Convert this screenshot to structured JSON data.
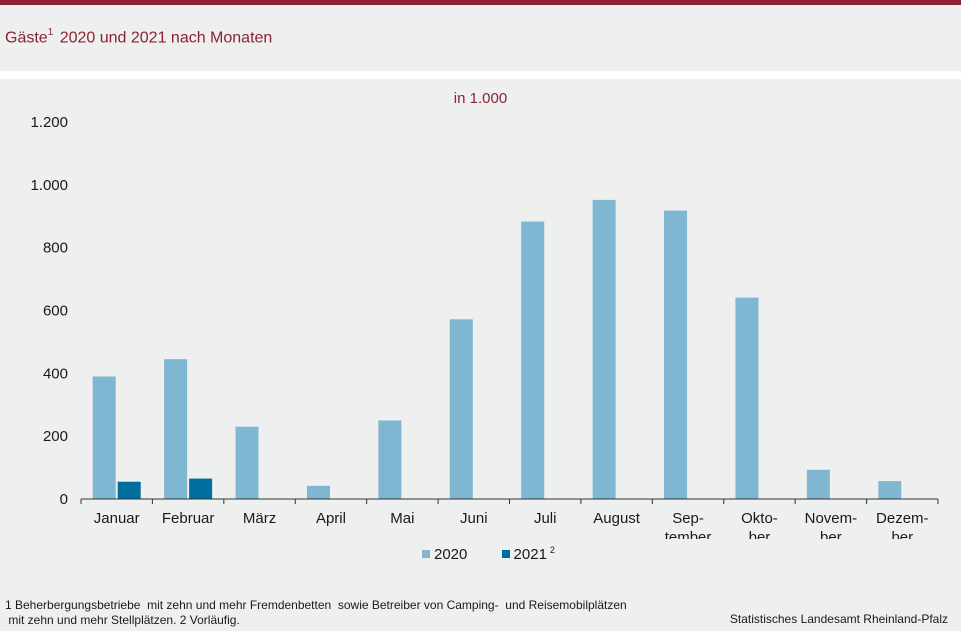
{
  "header": {
    "title": "Gäste",
    "title_sup": "1",
    "title_rest": " 2020 und 2021 nach Monaten"
  },
  "colors": {
    "accent": "#8b2233",
    "series_2020": "#7fb7d3",
    "series_2021": "#006e9f"
  },
  "chart_data": {
    "type": "bar",
    "unit_label": "in 1.000",
    "categories": [
      [
        "Januar"
      ],
      [
        "Februar"
      ],
      [
        "März"
      ],
      [
        "April"
      ],
      [
        "Mai"
      ],
      [
        "Juni"
      ],
      [
        "Juli"
      ],
      [
        "August"
      ],
      [
        "Sep-",
        "tember"
      ],
      [
        "Okto-",
        "ber"
      ],
      [
        "Novem-",
        "ber"
      ],
      [
        "Dezem-",
        "ber"
      ]
    ],
    "series": [
      {
        "name": "2020",
        "name_sup": "",
        "values": [
          390,
          445,
          230,
          42,
          250,
          572,
          883,
          952,
          918,
          641,
          93,
          57
        ]
      },
      {
        "name": "2021",
        "name_sup": "2",
        "values": [
          55,
          65,
          null,
          null,
          null,
          null,
          null,
          null,
          null,
          null,
          null,
          null
        ]
      }
    ],
    "ylim": [
      0,
      1200
    ],
    "yticks": [
      0,
      200,
      400,
      600,
      800,
      1000,
      1200
    ],
    "ytick_labels": [
      "0",
      "200",
      "400",
      "600",
      "800",
      "1.000",
      "1.200"
    ],
    "legend_position": "bottom-center",
    "grid": false
  },
  "footer": {
    "footnote": "1 Beherbergungsbetriebe  mit zehn und mehr Fremdenbetten  sowie Betreiber von Camping-  und Reisemobilplätzen\n mit zehn und mehr Stellplätzen. 2 Vorläufig.",
    "source": "Statistisches Landesamt Rheinland-Pfalz"
  }
}
